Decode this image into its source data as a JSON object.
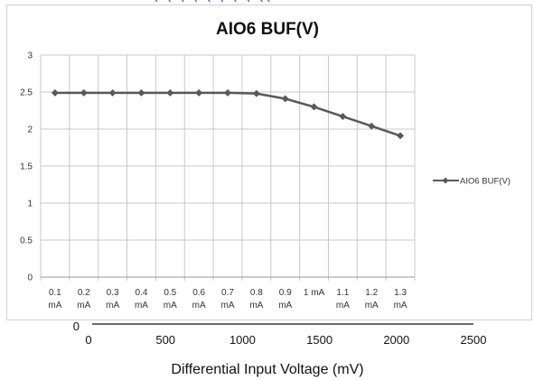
{
  "top_fragment": "( ( ( ( ( ( ( ( ((",
  "chart_data": [
    {
      "type": "line",
      "title": "AIO6 BUF(V)",
      "categories": [
        [
          "0.1",
          "mA"
        ],
        [
          "0.2",
          "mA"
        ],
        [
          "0.3",
          "mA"
        ],
        [
          "0.4",
          "mA"
        ],
        [
          "0.5",
          "mA"
        ],
        [
          "0.6",
          "mA"
        ],
        [
          "0.7",
          "mA"
        ],
        [
          "0.8",
          "mA"
        ],
        [
          "0.9",
          "mA"
        ],
        [
          "1 mA",
          ""
        ],
        [
          "1.1",
          "mA"
        ],
        [
          "1.2",
          "mA"
        ],
        [
          "1.3",
          "mA"
        ]
      ],
      "series": [
        {
          "name": "AIO6 BUF(V)",
          "values": [
            2.49,
            2.49,
            2.49,
            2.49,
            2.49,
            2.49,
            2.49,
            2.48,
            2.41,
            2.3,
            2.17,
            2.04,
            1.91
          ],
          "color": "#595959",
          "marker": "diamond"
        }
      ],
      "ylim": [
        0,
        3
      ],
      "yticks": [
        "0",
        "0.5",
        "1",
        "1.5",
        "2",
        "2.5",
        "3"
      ],
      "grid": true,
      "legend": "right"
    },
    {
      "type": "line",
      "series": [],
      "xlabel": "Differential Input Voltage (mV)",
      "xlim": [
        0,
        2500
      ],
      "xticks": [
        "0",
        "500",
        "1000",
        "1500",
        "2000",
        "2500"
      ],
      "yticks": [
        "0"
      ]
    }
  ]
}
